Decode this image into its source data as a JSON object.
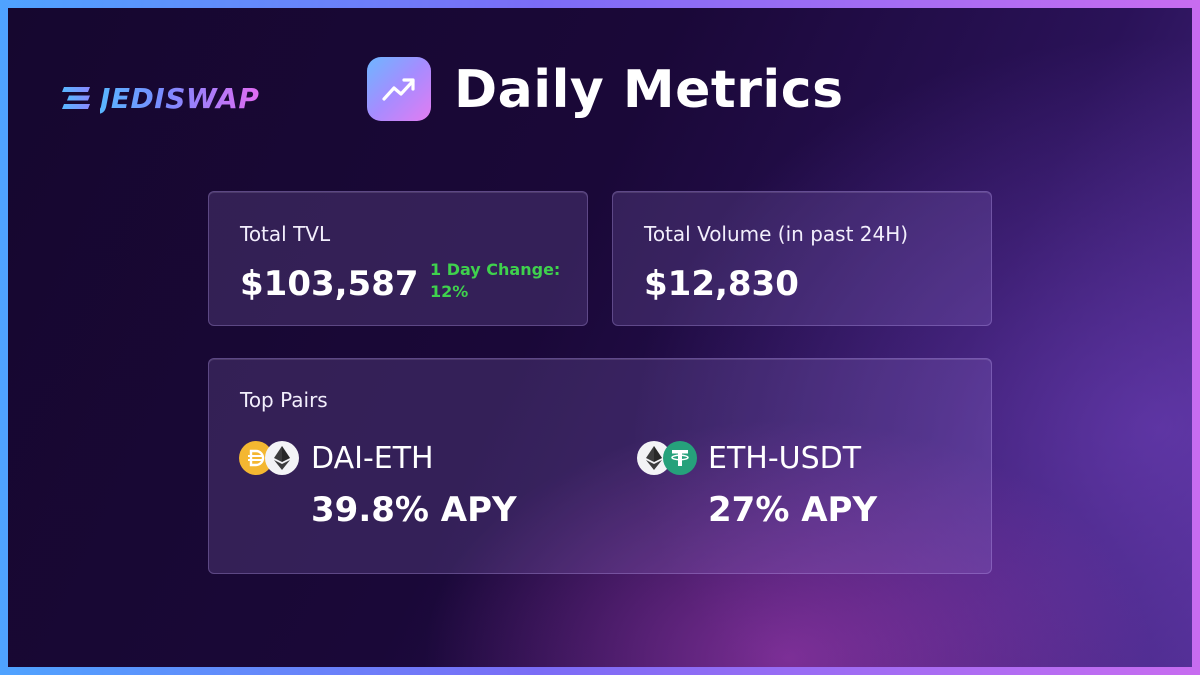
{
  "brand": {
    "logo_text": "JEDISWAP",
    "logo_icon": "jediswap-logo-icon"
  },
  "header": {
    "title": "Daily Metrics",
    "icon": "trending-up-icon"
  },
  "tvl": {
    "label": "Total TVL",
    "value": "$103,587",
    "change_label": "1 Day Change:",
    "change_value": "12%"
  },
  "volume": {
    "label": "Total Volume (in past 24H)",
    "value": "$12,830"
  },
  "top_pairs": {
    "label": "Top Pairs",
    "pairs": [
      {
        "name": "DAI-ETH",
        "apy": "39.8% APY",
        "icons": [
          "dai-icon",
          "eth-icon"
        ]
      },
      {
        "name": "ETH-USDT",
        "apy": "27% APY",
        "icons": [
          "eth-icon",
          "usdt-icon"
        ]
      }
    ]
  },
  "colors": {
    "accent_green": "#3fd14d",
    "background": "#1a0838",
    "dai": "#f4b731",
    "usdt": "#26a17b"
  }
}
